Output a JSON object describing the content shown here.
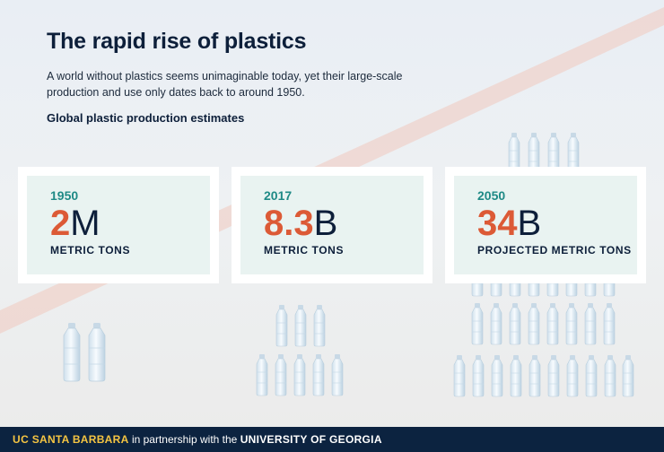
{
  "title": "The rapid rise of plastics",
  "intro": "A world without plastics seems unimaginable today, yet their large-scale production and use only dates back to around 1950.",
  "subheading": "Global plastic production estimates",
  "cards": [
    {
      "year": "1950",
      "number": "2",
      "unit": "M",
      "label": "METRIC TONS"
    },
    {
      "year": "2017",
      "number": "8.3",
      "unit": "B",
      "label": "METRIC TONS"
    },
    {
      "year": "2050",
      "number": "34",
      "unit": "B",
      "label": "PROJECTED METRIC TONS"
    }
  ],
  "colors": {
    "accent": "#dc5a36",
    "teal": "#1f8a86",
    "navy": "#0c2340",
    "gold": "#f5c542"
  },
  "footer": {
    "uc": "UC",
    "santa_barbara": "SANTA BARBARA",
    "partnership": "in partnership with the",
    "uga": "UNIVERSITY OF GEORGIA"
  }
}
